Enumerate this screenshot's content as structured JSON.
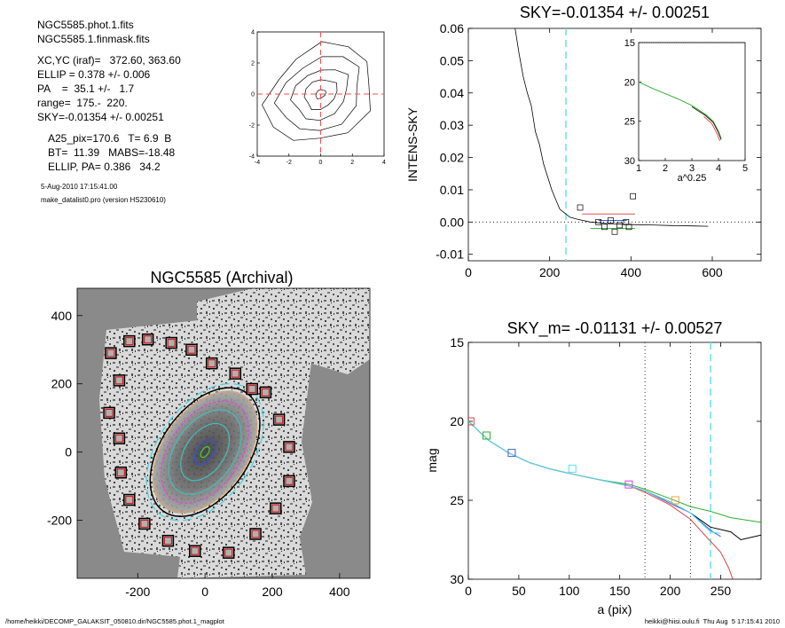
{
  "info": {
    "lines": [
      "NGC5585.phot.1.fits",
      "NGC5585.1.finmask.fits",
      "XC,YC (iraf)=   372.60, 363.60",
      "ELLIP = 0.378 +/- 0.006",
      "PA    =  35.1 +/-   1.7",
      "range=  175.-  220.",
      "SKY=-0.01354 +/- 0.00251",
      "A25_pix=170.6   T= 6.9  B",
      "BT=  11.39   MABS=-18.48",
      "ELLIP, PA= 0.386   34.2"
    ],
    "date_line": "5-Aug-2010 17:15:41.00",
    "program_line": "make_datalist0.pro (version HS230610)"
  },
  "footer": {
    "left": "/home/heikki/DECOMP_GALAKSIT_050810.dir/NGC5585.phot.1_magplot",
    "right": "heikki@hiisi.oulu.fi  Thu Aug  5 17:15:41 2010"
  },
  "chart_data": [
    {
      "id": "contour",
      "type": "contour",
      "xlim": [
        -4,
        4
      ],
      "ylim": [
        -4,
        4
      ],
      "xticks": [
        "-4",
        "-2",
        "0",
        "2",
        "4"
      ],
      "yticks": [
        "4",
        "2",
        "0",
        "-2",
        "-4"
      ],
      "levels": [
        {
          "a": 0.35,
          "b": 0.25
        },
        {
          "a": 1.1,
          "b": 0.9
        },
        {
          "a": 1.9,
          "b": 1.5
        },
        {
          "a": 2.8,
          "b": 2.2
        },
        {
          "a": 3.6,
          "b": 2.9
        }
      ],
      "marker_lines": {
        "x": 0,
        "y": 0,
        "color": "#ff4d4d"
      }
    },
    {
      "id": "sky",
      "type": "line",
      "title": "SKY=-0.01354 +/- 0.00251",
      "ylabel": "INTENS-SKY",
      "xlim": [
        0,
        720
      ],
      "ylim": [
        -0.012,
        0.06
      ],
      "xticks": [
        "0",
        "200",
        "400",
        "600"
      ],
      "yticks": [
        "0.06",
        "0.05",
        "0.04",
        "0.03",
        "0.02",
        "0.01",
        "0.00",
        "-0.01"
      ],
      "profile": [
        [
          115,
          0.06
        ],
        [
          125,
          0.052
        ],
        [
          135,
          0.045
        ],
        [
          145,
          0.04
        ],
        [
          155,
          0.036
        ],
        [
          165,
          0.028
        ],
        [
          175,
          0.024
        ],
        [
          185,
          0.018
        ],
        [
          195,
          0.014
        ],
        [
          205,
          0.01
        ],
        [
          215,
          0.007
        ],
        [
          225,
          0.004
        ],
        [
          235,
          0.003
        ],
        [
          250,
          0.0015
        ],
        [
          270,
          0.0008
        ],
        [
          300,
          0.0
        ],
        [
          350,
          -0.0006
        ],
        [
          400,
          -0.0008
        ],
        [
          450,
          -0.0009
        ],
        [
          500,
          -0.0011
        ],
        [
          550,
          -0.0012
        ],
        [
          590,
          -0.0013
        ]
      ],
      "squares": [
        [
          275,
          0.0045
        ],
        [
          320,
          0.0
        ],
        [
          335,
          -0.0015
        ],
        [
          350,
          0.0005
        ],
        [
          360,
          -0.003
        ],
        [
          372,
          -0.001
        ],
        [
          388,
          0.0
        ],
        [
          395,
          -0.0015
        ],
        [
          405,
          0.008
        ]
      ],
      "sky_ranges": [
        {
          "x0": 280,
          "x1": 410,
          "y": 0.0025,
          "color": "#e05050"
        },
        {
          "x0": 320,
          "x1": 390,
          "y": 0.0005,
          "color": "#4060d0"
        },
        {
          "x0": 300,
          "x1": 410,
          "y": -0.002,
          "color": "#30b030"
        }
      ],
      "vline_x": 240,
      "vline_color": "#66e0f0",
      "inset": {
        "xlabel": "a^0.25",
        "xlim": [
          1,
          5
        ],
        "ylim": [
          15,
          30
        ],
        "xticks": [
          "1",
          "2",
          "3",
          "4",
          "5"
        ],
        "yticks": [
          "15",
          "20",
          "25",
          "30"
        ],
        "curve": [
          [
            1.0,
            20.0
          ],
          [
            1.5,
            20.8
          ],
          [
            2.0,
            21.5
          ],
          [
            2.5,
            22.2
          ],
          [
            3.0,
            23.0
          ],
          [
            3.5,
            24.1
          ],
          [
            3.8,
            25.0
          ],
          [
            4.0,
            26.3
          ],
          [
            4.1,
            27.2
          ]
        ]
      }
    },
    {
      "id": "image",
      "type": "image",
      "title": "NGC5585 (Archival)",
      "xlim": [
        -380,
        490
      ],
      "ylim": [
        -370,
        480
      ],
      "xticks": [
        "-200",
        "0",
        "200",
        "400"
      ],
      "yticks": [
        "400",
        "200",
        "0",
        "-200"
      ],
      "ellipses": [
        {
          "a": 18,
          "b": 10,
          "color": "#40d040"
        },
        {
          "a": 42,
          "b": 24,
          "color": "#3050e0"
        },
        {
          "a": 95,
          "b": 58,
          "color": "#40c0c0"
        },
        {
          "a": 140,
          "b": 88,
          "color": "#40c0c0"
        },
        {
          "a": 170,
          "b": 105,
          "color": "#e040e0"
        },
        {
          "a": 200,
          "b": 125,
          "color": "#f0a040"
        },
        {
          "a": 215,
          "b": 130,
          "color": "#000000"
        },
        {
          "a": 228,
          "b": 140,
          "color": "#40d0e0"
        }
      ],
      "pa_deg": 35,
      "sky_boxes": [
        [
          -280,
          290
        ],
        [
          -225,
          325
        ],
        [
          -170,
          330
        ],
        [
          -100,
          320
        ],
        [
          -40,
          300
        ],
        [
          20,
          260
        ],
        [
          90,
          230
        ],
        [
          140,
          185
        ],
        [
          -255,
          210
        ],
        [
          -285,
          115
        ],
        [
          -255,
          40
        ],
        [
          -250,
          -60
        ],
        [
          -225,
          -140
        ],
        [
          -180,
          -210
        ],
        [
          -110,
          -260
        ],
        [
          -30,
          -290
        ],
        [
          70,
          -295
        ],
        [
          150,
          -240
        ],
        [
          210,
          -165
        ],
        [
          250,
          -85
        ],
        [
          250,
          15
        ],
        [
          220,
          95
        ],
        [
          180,
          175
        ]
      ]
    },
    {
      "id": "mag",
      "type": "line",
      "title": "SKY_m= -0.01131 +/- 0.00527",
      "xlabel": "a (pix)",
      "ylabel": "mag",
      "xlim": [
        0,
        290
      ],
      "ylim": [
        15,
        30
      ],
      "xticks": [
        "0",
        "50",
        "100",
        "150",
        "200",
        "250"
      ],
      "yticks": [
        "15",
        "20",
        "25",
        "30"
      ],
      "vlines_dotted": [
        175,
        220
      ],
      "vline_dashed": 240,
      "series": [
        {
          "color": "#000000",
          "points": [
            [
              0,
              20.0
            ],
            [
              20,
              21.2
            ],
            [
              40,
              22.0
            ],
            [
              60,
              22.6
            ],
            [
              80,
              23.0
            ],
            [
              100,
              23.3
            ],
            [
              130,
              23.7
            ],
            [
              160,
              24.1
            ],
            [
              175,
              24.4
            ],
            [
              200,
              25.1
            ],
            [
              220,
              25.8
            ],
            [
              240,
              26.7
            ],
            [
              260,
              27.0
            ],
            [
              270,
              27.5
            ],
            [
              290,
              27.2
            ]
          ]
        },
        {
          "color": "#30b030",
          "points": [
            [
              0,
              20.0
            ],
            [
              20,
              21.2
            ],
            [
              40,
              22.0
            ],
            [
              60,
              22.6
            ],
            [
              80,
              23.0
            ],
            [
              100,
              23.3
            ],
            [
              130,
              23.7
            ],
            [
              160,
              24.0
            ],
            [
              175,
              24.3
            ],
            [
              200,
              24.9
            ],
            [
              220,
              25.4
            ],
            [
              240,
              25.7
            ],
            [
              260,
              26.1
            ],
            [
              290,
              26.4
            ]
          ]
        },
        {
          "color": "#e04040",
          "points": [
            [
              0,
              20.0
            ],
            [
              20,
              21.2
            ],
            [
              40,
              22.0
            ],
            [
              60,
              22.6
            ],
            [
              80,
              23.0
            ],
            [
              100,
              23.3
            ],
            [
              130,
              23.7
            ],
            [
              160,
              24.1
            ],
            [
              175,
              24.5
            ],
            [
              200,
              25.3
            ],
            [
              220,
              26.2
            ],
            [
              240,
              27.6
            ],
            [
              250,
              28.3
            ],
            [
              258,
              29.3
            ],
            [
              262,
              30.0
            ]
          ]
        },
        {
          "color": "#4060d0",
          "points": [
            [
              0,
              20.0
            ],
            [
              20,
              21.2
            ],
            [
              40,
              22.0
            ],
            [
              60,
              22.6
            ],
            [
              80,
              23.0
            ],
            [
              100,
              23.3
            ],
            [
              130,
              23.7
            ],
            [
              160,
              24.1
            ],
            [
              175,
              24.4
            ],
            [
              200,
              25.2
            ],
            [
              220,
              25.8
            ],
            [
              240,
              26.9
            ],
            [
              250,
              27.3
            ]
          ]
        },
        {
          "color": "#55e0f0",
          "points": [
            [
              0,
              20.0
            ],
            [
              20,
              21.2
            ],
            [
              40,
              22.0
            ],
            [
              60,
              22.6
            ],
            [
              80,
              23.0
            ],
            [
              100,
              23.3
            ],
            [
              130,
              23.7
            ],
            [
              160,
              24.1
            ],
            [
              175,
              24.4
            ],
            [
              200,
              25.1
            ],
            [
              220,
              25.8
            ],
            [
              240,
              27.0
            ],
            [
              250,
              27.1
            ]
          ]
        }
      ],
      "markers": [
        {
          "x": 2,
          "y": 20.0,
          "color": "#e04040"
        },
        {
          "x": 18,
          "y": 20.9,
          "color": "#30b030"
        },
        {
          "x": 43,
          "y": 22.0,
          "color": "#4060d0"
        },
        {
          "x": 103,
          "y": 23.0,
          "color": "#55e0f0"
        },
        {
          "x": 159,
          "y": 24.0,
          "color": "#e040e0"
        },
        {
          "x": 205,
          "y": 25.0,
          "color": "#f0a040"
        }
      ]
    }
  ]
}
